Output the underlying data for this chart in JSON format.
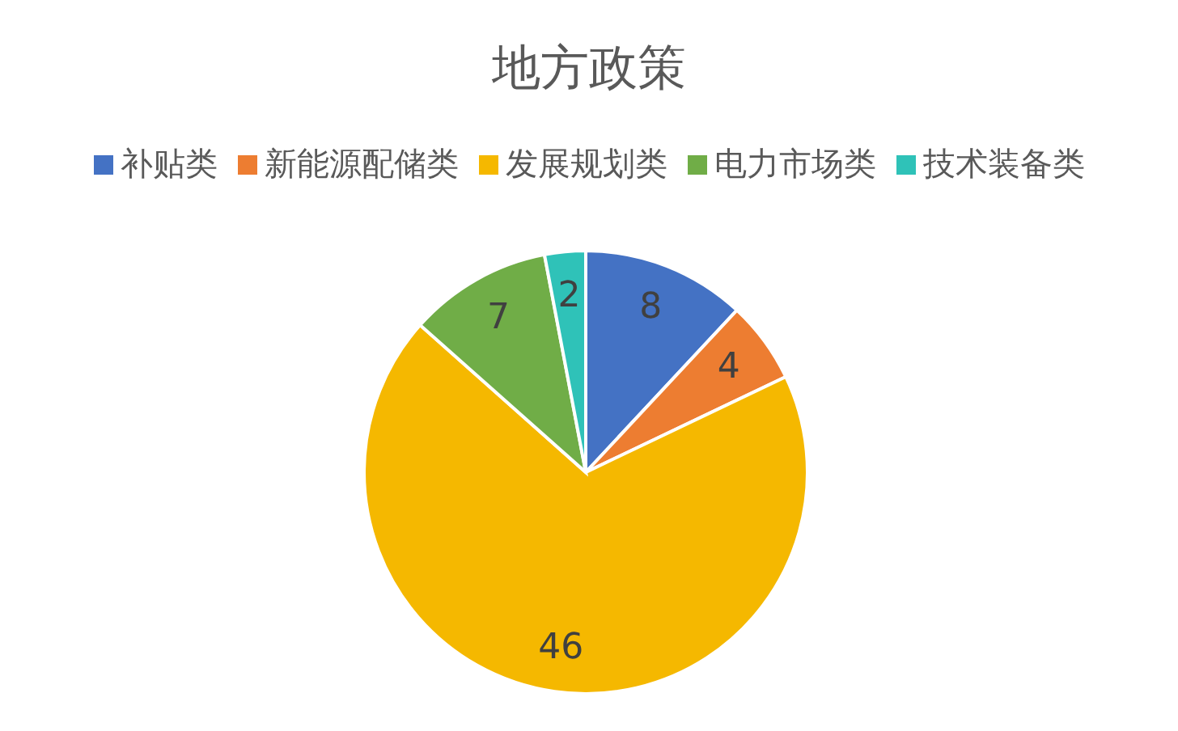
{
  "chart_data": {
    "type": "pie",
    "title": "地方政策",
    "categories": [
      "补贴类",
      "新能源配储类",
      "发展规划类",
      "电力市场类",
      "技术装备类"
    ],
    "values": [
      8,
      4,
      46,
      7,
      2
    ],
    "colors": [
      "#4472c4",
      "#ed7d31",
      "#f5b800",
      "#70ad47",
      "#2fc2b8"
    ],
    "data_labels": true,
    "legend": "top"
  }
}
